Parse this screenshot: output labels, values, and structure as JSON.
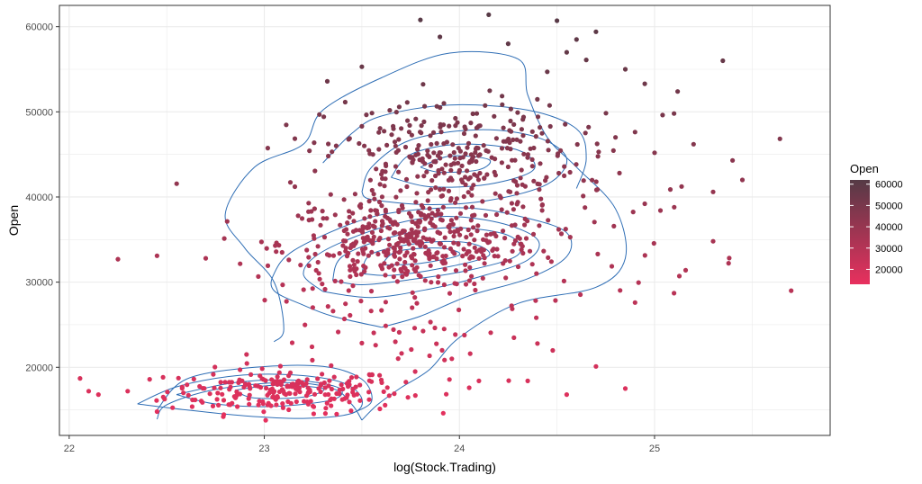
{
  "chart_data": {
    "type": "scatter",
    "overlay": "2d-density-contours",
    "title": "",
    "xlabel": "log(Stock.Trading)",
    "ylabel": "Open",
    "xlim": [
      21.95,
      25.9
    ],
    "ylim": [
      12000,
      62500
    ],
    "x_ticks": [
      22,
      23,
      24,
      25
    ],
    "y_ticks": [
      20000,
      30000,
      40000,
      50000,
      60000
    ],
    "grid": true,
    "theme": "bw",
    "contour_color": "#2f6eb5",
    "color_scale": {
      "variable": "Open",
      "low_color": "#e8305e",
      "high_color": "#553a46",
      "ticks": [
        20000,
        30000,
        40000,
        50000,
        60000
      ],
      "range": [
        13000,
        62000
      ]
    },
    "legend": {
      "title": "Open",
      "position": "right"
    },
    "point_clusters": [
      {
        "cx": 23.1,
        "cy": 17200,
        "sx": 0.3,
        "sy": 1300,
        "n": 230
      },
      {
        "cx": 23.75,
        "cy": 34500,
        "sx": 0.33,
        "sy": 2600,
        "n": 420
      },
      {
        "cx": 23.95,
        "cy": 45000,
        "sx": 0.32,
        "sy": 3200,
        "n": 260
      },
      {
        "cx": 24.2,
        "cy": 39000,
        "sx": 0.55,
        "sy": 6500,
        "n": 120
      },
      {
        "cx": 23.8,
        "cy": 23000,
        "sx": 0.4,
        "sy": 3000,
        "n": 45
      }
    ],
    "outlier_points": [
      [
        22.1,
        17200
      ],
      [
        22.15,
        16800
      ],
      [
        22.25,
        32700
      ],
      [
        22.45,
        33100
      ],
      [
        22.7,
        32800
      ],
      [
        25.35,
        56000
      ],
      [
        25.7,
        29000
      ],
      [
        25.45,
        42000
      ],
      [
        25.4,
        44300
      ],
      [
        25.1,
        28700
      ],
      [
        24.85,
        17500
      ],
      [
        24.55,
        16800
      ],
      [
        24.1,
        18400
      ],
      [
        24.35,
        18400
      ],
      [
        24.05,
        17600
      ],
      [
        22.45,
        14800
      ],
      [
        22.3,
        17200
      ],
      [
        24.85,
        55000
      ],
      [
        24.95,
        53300
      ],
      [
        24.5,
        60700
      ],
      [
        24.15,
        61400
      ],
      [
        23.8,
        60800
      ],
      [
        25.3,
        34800
      ],
      [
        25.1,
        49800
      ],
      [
        25.0,
        45200
      ],
      [
        24.55,
        57000
      ],
      [
        24.6,
        58500
      ],
      [
        24.7,
        59400
      ],
      [
        24.25,
        58000
      ],
      [
        23.9,
        58800
      ],
      [
        23.5,
        55300
      ],
      [
        24.45,
        54700
      ],
      [
        24.65,
        56100
      ],
      [
        24.8,
        47000
      ],
      [
        24.95,
        39200
      ],
      [
        25.2,
        46200
      ],
      [
        25.3,
        40600
      ],
      [
        24.7,
        20100
      ],
      [
        24.9,
        27600
      ],
      [
        24.4,
        22800
      ]
    ],
    "contours": [
      [
        [
          22.45,
          13900
        ],
        [
          22.5,
          15600
        ],
        [
          22.75,
          17400
        ],
        [
          23.1,
          18200
        ],
        [
          23.35,
          17500
        ],
        [
          23.45,
          15600
        ],
        [
          23.5,
          13800
        ]
      ],
      [
        [
          22.35,
          15700
        ],
        [
          22.55,
          17700
        ],
        [
          22.85,
          19000
        ],
        [
          23.15,
          19100
        ],
        [
          23.4,
          18200
        ],
        [
          23.5,
          16300
        ],
        [
          23.45,
          14600
        ],
        [
          23.2,
          14000
        ],
        [
          22.9,
          14300
        ],
        [
          22.6,
          15000
        ],
        [
          22.35,
          15700
        ]
      ],
      [
        [
          22.55,
          16800
        ],
        [
          22.85,
          18200
        ],
        [
          23.15,
          18500
        ],
        [
          23.38,
          17600
        ],
        [
          23.35,
          16200
        ],
        [
          23.05,
          15400
        ],
        [
          22.75,
          15700
        ],
        [
          22.55,
          16800
        ]
      ],
      [
        [
          22.85,
          17300
        ],
        [
          23.05,
          17900
        ],
        [
          23.3,
          17500
        ],
        [
          23.2,
          16500
        ],
        [
          22.95,
          16400
        ],
        [
          22.85,
          17300
        ]
      ],
      [
        [
          22.45,
          15000
        ],
        [
          22.6,
          18600
        ],
        [
          22.95,
          20000
        ],
        [
          23.3,
          20100
        ],
        [
          23.5,
          18600
        ],
        [
          23.55,
          16000
        ],
        [
          23.45,
          14600
        ]
      ],
      [
        [
          23.5,
          13800
        ],
        [
          23.58,
          15600
        ],
        [
          23.7,
          17600
        ],
        [
          23.85,
          19800
        ],
        [
          24.0,
          23500
        ],
        [
          24.3,
          27500
        ],
        [
          24.7,
          29400
        ],
        [
          24.85,
          32800
        ],
        [
          24.8,
          38600
        ],
        [
          24.6,
          43500
        ],
        [
          24.45,
          47000
        ],
        [
          24.35,
          52000
        ],
        [
          24.3,
          56200
        ],
        [
          23.95,
          56900
        ],
        [
          23.6,
          54000
        ],
        [
          23.3,
          50200
        ],
        [
          23.2,
          46200
        ],
        [
          22.95,
          43500
        ],
        [
          22.8,
          38000
        ],
        [
          22.9,
          34000
        ],
        [
          23.05,
          30000
        ],
        [
          23.1,
          24500
        ],
        [
          23.05,
          23000
        ]
      ],
      [
        [
          23.6,
          24700
        ],
        [
          23.35,
          26000
        ],
        [
          23.2,
          27300
        ],
        [
          23.05,
          29000
        ],
        [
          23.05,
          31000
        ],
        [
          23.15,
          33700
        ],
        [
          23.45,
          36900
        ],
        [
          23.7,
          38300
        ],
        [
          24.05,
          38700
        ],
        [
          24.35,
          37500
        ],
        [
          24.55,
          35800
        ],
        [
          24.55,
          33000
        ],
        [
          24.35,
          30400
        ],
        [
          24.05,
          28400
        ],
        [
          23.8,
          26000
        ],
        [
          23.6,
          24700
        ]
      ],
      [
        [
          23.3,
          28900
        ],
        [
          23.2,
          31000
        ],
        [
          23.3,
          33600
        ],
        [
          23.6,
          36400
        ],
        [
          23.9,
          37700
        ],
        [
          24.2,
          37000
        ],
        [
          24.4,
          35000
        ],
        [
          24.35,
          32600
        ],
        [
          24.1,
          30600
        ],
        [
          23.85,
          29200
        ],
        [
          23.55,
          28200
        ],
        [
          23.3,
          28900
        ]
      ],
      [
        [
          23.35,
          30200
        ],
        [
          23.4,
          33000
        ],
        [
          23.65,
          35300
        ],
        [
          23.95,
          36400
        ],
        [
          24.25,
          35500
        ],
        [
          24.3,
          33200
        ],
        [
          24.05,
          31400
        ],
        [
          23.75,
          30300
        ],
        [
          23.5,
          29700
        ],
        [
          23.35,
          30200
        ]
      ],
      [
        [
          23.5,
          31000
        ],
        [
          23.55,
          33300
        ],
        [
          23.8,
          34600
        ],
        [
          24.05,
          34600
        ],
        [
          24.15,
          33100
        ],
        [
          23.9,
          31600
        ],
        [
          23.65,
          30800
        ],
        [
          23.5,
          31000
        ]
      ],
      [
        [
          23.6,
          32000
        ],
        [
          23.68,
          33600
        ],
        [
          23.9,
          34000
        ],
        [
          24.0,
          33200
        ],
        [
          23.8,
          32200
        ],
        [
          23.6,
          32000
        ]
      ],
      [
        [
          23.5,
          40600
        ],
        [
          23.55,
          43500
        ],
        [
          23.75,
          46700
        ],
        [
          24.1,
          47900
        ],
        [
          24.4,
          47000
        ],
        [
          24.55,
          44500
        ],
        [
          24.45,
          41500
        ],
        [
          24.15,
          39600
        ],
        [
          23.85,
          39100
        ],
        [
          23.55,
          39700
        ],
        [
          23.5,
          40600
        ]
      ],
      [
        [
          23.65,
          42300
        ],
        [
          23.75,
          45000
        ],
        [
          24.0,
          46200
        ],
        [
          24.3,
          45500
        ],
        [
          24.38,
          43200
        ],
        [
          24.15,
          41500
        ],
        [
          23.85,
          41200
        ],
        [
          23.65,
          42300
        ]
      ],
      [
        [
          23.8,
          43500
        ],
        [
          23.95,
          44800
        ],
        [
          24.15,
          44400
        ],
        [
          24.1,
          43200
        ],
        [
          23.9,
          42900
        ],
        [
          23.8,
          43500
        ]
      ],
      [
        [
          23.3,
          44000
        ],
        [
          23.45,
          47500
        ],
        [
          23.6,
          49500
        ],
        [
          23.95,
          50800
        ],
        [
          24.35,
          50200
        ],
        [
          24.6,
          48000
        ],
        [
          24.65,
          44500
        ],
        [
          24.6,
          41000
        ]
      ]
    ]
  }
}
